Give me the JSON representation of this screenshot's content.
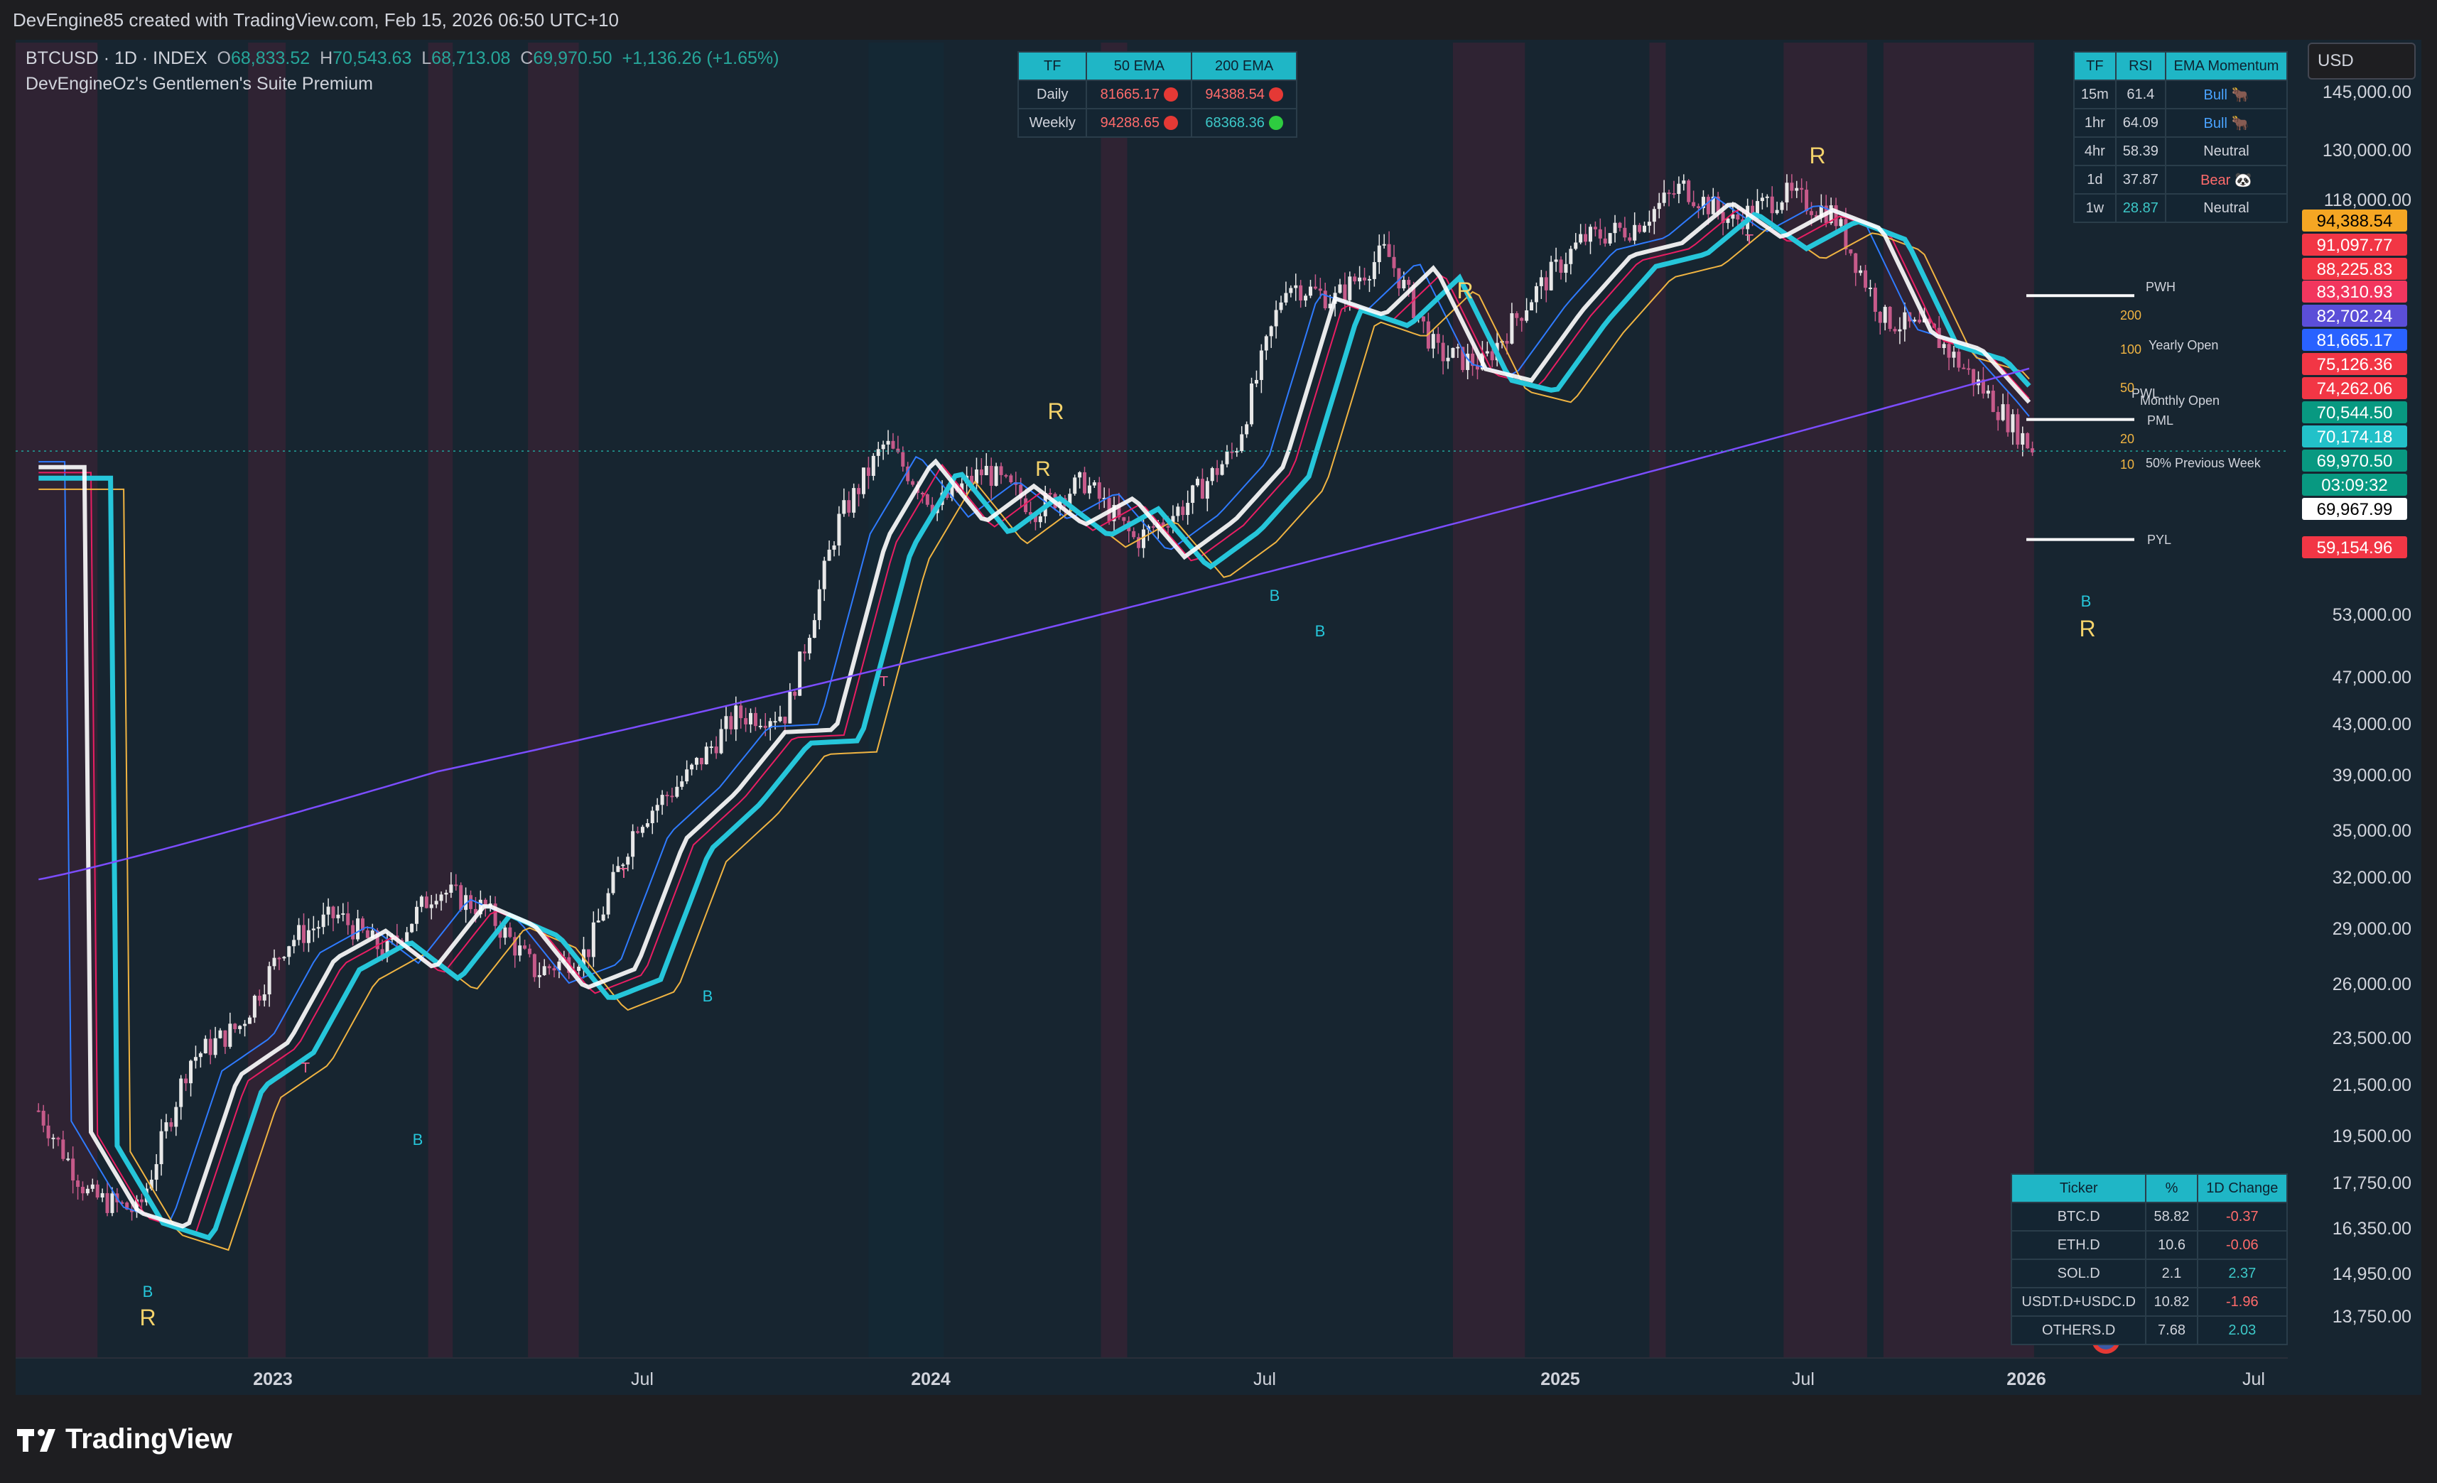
{
  "credit": "DevEngine85 created with TradingView.com, Feb 15, 2026 06:50 UTC+10",
  "header": {
    "symbol": "BTCUSD · 1D · INDEX",
    "o_label": "O",
    "o_val": "68,833.52",
    "h_label": "H",
    "h_val": "70,543.63",
    "l_label": "L",
    "l_val": "68,713.08",
    "c_label": "C",
    "c_val": "69,970.50",
    "change": "+1,136.26 (+1.65%)",
    "indicator": "DevEngineOz's Gentlemen's Suite Premium"
  },
  "currency": "USD",
  "ema_table": {
    "headers": [
      "TF",
      "50 EMA",
      "200 EMA"
    ],
    "rows": [
      {
        "tf": "Daily",
        "ema50": "81665.17",
        "ema200": "94388.54",
        "c50": "#e53935",
        "c200": "#e53935"
      },
      {
        "tf": "Weekly",
        "ema50": "94288.65",
        "ema200": "68368.36",
        "c50": "#e53935",
        "c200": "#2ecc40"
      }
    ]
  },
  "rsi_table": {
    "headers": [
      "TF",
      "RSI",
      "EMA Momentum"
    ],
    "rows": [
      {
        "tf": "15m",
        "rsi": "61.4",
        "mom": "Bull 🐂",
        "cls": "blue",
        "rcls": ""
      },
      {
        "tf": "1hr",
        "rsi": "64.09",
        "mom": "Bull 🐂",
        "cls": "blue",
        "rcls": ""
      },
      {
        "tf": "4hr",
        "rsi": "58.39",
        "mom": "Neutral",
        "cls": "",
        "rcls": ""
      },
      {
        "tf": "1d",
        "rsi": "37.87",
        "mom": "Bear 🐼",
        "cls": "red",
        "rcls": ""
      },
      {
        "tf": "1w",
        "rsi": "28.87",
        "mom": "Neutral",
        "cls": "",
        "rcls": "teal"
      }
    ]
  },
  "dom_table": {
    "headers": [
      "Ticker",
      "%",
      "1D Change"
    ],
    "rows": [
      {
        "t": "BTC.D",
        "p": "58.82",
        "c": "-0.37",
        "cls": "red"
      },
      {
        "t": "ETH.D",
        "p": "10.6",
        "c": "-0.06",
        "cls": "red"
      },
      {
        "t": "SOL.D",
        "p": "2.1",
        "c": "2.37",
        "cls": "teal"
      },
      {
        "t": "USDT.D+USDC.D",
        "p": "10.82",
        "c": "-1.96",
        "cls": "red"
      },
      {
        "t": "OTHERS.D",
        "p": "7.68",
        "c": "2.03",
        "cls": "teal"
      }
    ]
  },
  "y_ticks": [
    "145,000.00",
    "130,000.00",
    "118,000.00",
    "53,000.00",
    "47,000.00",
    "43,000.00",
    "39,000.00",
    "35,000.00",
    "32,000.00",
    "29,000.00",
    "26,000.00",
    "23,500.00",
    "21,500.00",
    "19,500.00",
    "17,750.00",
    "16,350.00",
    "14,950.00",
    "13,750.00"
  ],
  "price_badges": [
    {
      "label": "94,388.54",
      "bg": "#f5a623",
      "fg": "#000000"
    },
    {
      "label": "91,097.77",
      "bg": "#f23645",
      "fg": "#ffffff"
    },
    {
      "label": "88,225.83",
      "bg": "#f23645",
      "fg": "#ffffff"
    },
    {
      "label": "83,310.93",
      "bg": "#f2365e",
      "fg": "#ffffff"
    },
    {
      "label": "82,702.24",
      "bg": "#5b4ed8",
      "fg": "#ffffff"
    },
    {
      "label": "81,665.17",
      "bg": "#2962ff",
      "fg": "#ffffff"
    },
    {
      "label": "75,126.36",
      "bg": "#f23645",
      "fg": "#ffffff"
    },
    {
      "label": "74,262.06",
      "bg": "#f23645",
      "fg": "#ffffff"
    },
    {
      "label": "70,544.50",
      "bg": "#089981",
      "fg": "#ffffff"
    },
    {
      "label": "70,174.18",
      "bg": "#22c1c9",
      "fg": "#ffffff"
    },
    {
      "label": "69,970.50",
      "bg": "#089981",
      "fg": "#ffffff"
    },
    {
      "label": "03:09:32",
      "bg": "#089981",
      "fg": "#ffffff"
    },
    {
      "label": "69,967.99",
      "bg": "#ffffff",
      "fg": "#000000"
    },
    {
      "label": "59,154.96",
      "bg": "#f23645",
      "fg": "#ffffff"
    }
  ],
  "x_ticks": [
    {
      "label": "2023",
      "bold": true
    },
    {
      "label": "Jul",
      "bold": false
    },
    {
      "label": "2024",
      "bold": true
    },
    {
      "label": "Jul",
      "bold": false
    },
    {
      "label": "2025",
      "bold": true
    },
    {
      "label": "Jul",
      "bold": false
    },
    {
      "label": "2026",
      "bold": true
    },
    {
      "label": "Jul",
      "bold": false
    }
  ],
  "level_labels": [
    "PWH",
    "200",
    "Yearly Open",
    "100",
    "PWL",
    "50",
    "Monthly Open",
    "PML",
    "20",
    "10",
    "50% Previous Week",
    "PYL"
  ],
  "chart_markers": {
    "r": "R",
    "b": "B",
    "t": "T"
  },
  "footer_logo": "TradingView",
  "chart_data": {
    "type": "candlestick",
    "symbol": "BTCUSD",
    "timeframe": "1D",
    "scale": "log",
    "x": [
      "2022-10",
      "2022-11",
      "2022-12",
      "2023-01",
      "2023-02",
      "2023-03",
      "2023-04",
      "2023-05",
      "2023-06",
      "2023-07",
      "2023-08",
      "2023-09",
      "2023-10",
      "2023-11",
      "2023-12",
      "2024-01",
      "2024-02",
      "2024-03",
      "2024-04",
      "2024-05",
      "2024-06",
      "2024-07",
      "2024-08",
      "2024-09",
      "2024-10",
      "2024-11",
      "2024-12",
      "2025-01",
      "2025-02",
      "2025-03",
      "2025-04",
      "2025-05",
      "2025-06",
      "2025-07",
      "2025-08",
      "2025-09",
      "2025-10",
      "2025-11",
      "2025-12",
      "2026-01",
      "2026-02"
    ],
    "series": [
      {
        "name": "BTCUSD",
        "values": [
          20000,
          17000,
          16500,
          22000,
          23500,
          27500,
          29000,
          27000,
          30500,
          29300,
          26000,
          27000,
          34500,
          37700,
          42300,
          42500,
          61000,
          71000,
          63000,
          67500,
          62700,
          66000,
          59000,
          63300,
          70200,
          96400,
          93400,
          102400,
          84300,
          82500,
          94200,
          104600,
          107100,
          115700,
          108200,
          114000,
          110000,
          90000,
          87500,
          78600,
          69970
        ]
      }
    ],
    "ema_values": {
      "daily_50": 81665.17,
      "daily_200": 94388.54,
      "weekly_50": 94288.65,
      "weekly_200": 68368.36
    },
    "ylim": [
      12500,
      152000
    ]
  }
}
